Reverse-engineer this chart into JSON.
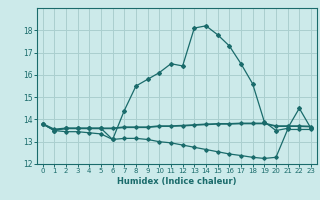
{
  "xlabel": "Humidex (Indice chaleur)",
  "x": [
    0,
    1,
    2,
    3,
    4,
    5,
    6,
    7,
    8,
    9,
    10,
    11,
    12,
    13,
    14,
    15,
    16,
    17,
    18,
    19,
    20,
    21,
    22,
    23
  ],
  "line1": [
    13.8,
    13.5,
    13.6,
    13.6,
    13.6,
    13.6,
    13.1,
    14.4,
    15.5,
    15.8,
    16.1,
    16.5,
    16.4,
    18.1,
    18.2,
    17.8,
    17.3,
    16.5,
    15.6,
    13.9,
    13.5,
    13.6,
    14.5,
    13.6
  ],
  "line2": [
    13.8,
    13.55,
    13.6,
    13.6,
    13.6,
    13.6,
    13.6,
    13.65,
    13.65,
    13.65,
    13.7,
    13.7,
    13.72,
    13.75,
    13.78,
    13.8,
    13.8,
    13.82,
    13.82,
    13.82,
    13.7,
    13.7,
    13.7,
    13.68
  ],
  "line3": [
    13.8,
    13.5,
    13.45,
    13.45,
    13.4,
    13.35,
    13.1,
    13.15,
    13.15,
    13.1,
    13.0,
    12.95,
    12.85,
    12.75,
    12.65,
    12.55,
    12.45,
    12.38,
    12.3,
    12.25,
    12.3,
    13.55,
    13.55,
    13.55
  ],
  "line_color": "#1a6b6b",
  "bg_color": "#cceaea",
  "grid_color": "#aacfcf",
  "ylim": [
    12,
    19
  ],
  "yticks": [
    12,
    13,
    14,
    15,
    16,
    17,
    18
  ],
  "xticks": [
    0,
    1,
    2,
    3,
    4,
    5,
    6,
    7,
    8,
    9,
    10,
    11,
    12,
    13,
    14,
    15,
    16,
    17,
    18,
    19,
    20,
    21,
    22,
    23
  ]
}
